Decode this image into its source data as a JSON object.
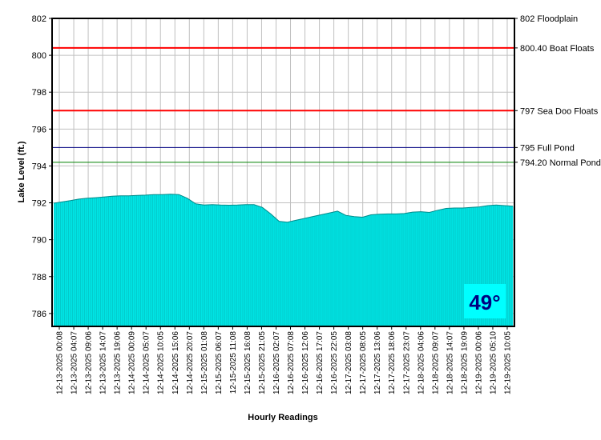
{
  "chart_data": {
    "type": "area",
    "xlabel": "Hourly Readings",
    "ylabel": "Lake Level (ft.)",
    "ylim": [
      785.3,
      802
    ],
    "yticks": [
      786,
      788,
      790,
      792,
      794,
      796,
      798,
      800,
      802
    ],
    "grid": true,
    "fill_color": "#00e5e5",
    "x_tick_labels": [
      "12-13-2025 00:08",
      "12-13-2025 04:07",
      "12-13-2025 09:06",
      "12-13-2025 14:07",
      "12-13-2025 19:06",
      "12-14-2025 00:09",
      "12-14-2025 05:07",
      "12-14-2025 10:05",
      "12-14-2025 15:06",
      "12-14-2025 20:07",
      "12-15-2025 01:08",
      "12-15-2025 06:07",
      "12-15-2025 11:08",
      "12-15-2025 16:08",
      "12-15-2025 21:05",
      "12-16-2025 02:07",
      "12-16-2025 07:08",
      "12-16-2025 12:06",
      "12-16-2025 17:07",
      "12-16-2025 22:05",
      "12-17-2025 03:08",
      "12-17-2025 08:05",
      "12-17-2025 13:06",
      "12-17-2025 18:06",
      "12-17-2025 23:07",
      "12-18-2025 04:06",
      "12-18-2025 09:07",
      "12-18-2025 14:07",
      "12-18-2025 19:09",
      "12-19-2025 00:06",
      "12-19-2025 05:10",
      "12-19-2025 10:05"
    ],
    "series": [
      {
        "values": [
          791.98,
          792.05,
          792.12,
          792.2,
          792.25,
          792.28,
          792.32,
          792.36,
          792.38,
          792.38,
          792.4,
          792.42,
          792.45,
          792.45,
          792.47,
          792.45,
          792.25,
          791.95,
          791.88,
          791.9,
          791.88,
          791.87,
          791.88,
          791.9,
          791.9,
          791.75,
          791.4,
          791.0,
          790.95,
          791.05,
          791.15,
          791.25,
          791.35,
          791.45,
          791.55,
          791.32,
          791.25,
          791.22,
          791.35,
          791.38,
          791.4,
          791.4,
          791.42,
          791.5,
          791.52,
          791.48,
          791.6,
          791.7,
          791.72,
          791.72,
          791.75,
          791.78,
          791.85,
          791.88,
          791.85,
          791.82
        ]
      }
    ],
    "reference_lines": [
      {
        "value": 802,
        "label": "802 Floodplain",
        "color": "#ff0000"
      },
      {
        "value": 800.4,
        "label": "800.40 Boat Floats",
        "color": "#ff0000"
      },
      {
        "value": 797,
        "label": "797 Sea Doo Floats",
        "color": "#ff0000"
      },
      {
        "value": 795,
        "label": "795 Full Pond",
        "color": "#000080"
      },
      {
        "value": 794.2,
        "label": "794.20 Normal Pond",
        "color": "#008000"
      }
    ],
    "badge": {
      "text": "49°",
      "background": "#00ffff",
      "color": "#000080"
    }
  }
}
